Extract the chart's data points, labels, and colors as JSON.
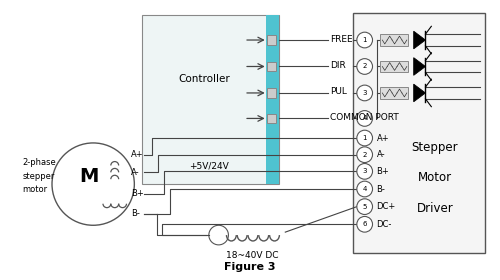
{
  "title": "Figure 3",
  "bg_color": "#ffffff",
  "controller_label": "Controller",
  "power_label": "+5V/24V",
  "dc_label": "18~40V DC",
  "motor_label_lines": [
    "2-phase",
    "stepper",
    "motor"
  ],
  "signal_labels": [
    "FREE",
    "DIR",
    "PUL",
    "COMMON PORT"
  ],
  "driver_terminal_labels": [
    "A+",
    "A-",
    "B+",
    "B-",
    "DC+",
    "DC-"
  ],
  "driver_text": [
    "Stepper",
    "Motor",
    "Driver"
  ],
  "motor_terminal_labels": [
    "A+",
    "A-",
    "B+",
    "B-"
  ],
  "cyan_color": "#4fc3d0",
  "gray_color": "#aaaaaa",
  "line_color": "#444444"
}
